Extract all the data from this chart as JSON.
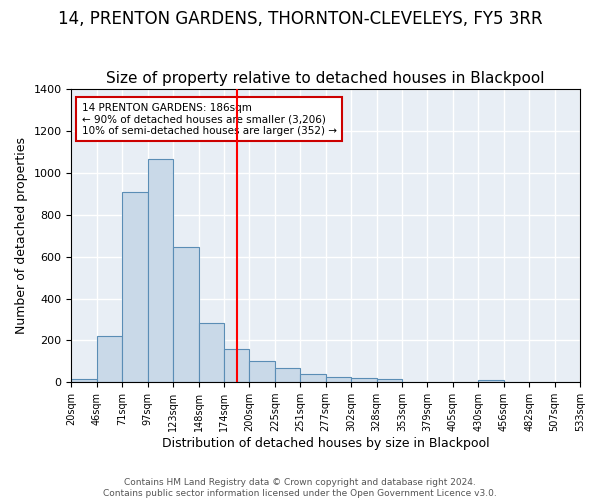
{
  "title": "14, PRENTON GARDENS, THORNTON-CLEVELEYS, FY5 3RR",
  "subtitle": "Size of property relative to detached houses in Blackpool",
  "xlabel": "Distribution of detached houses by size in Blackpool",
  "ylabel": "Number of detached properties",
  "footer_line1": "Contains HM Land Registry data © Crown copyright and database right 2024.",
  "footer_line2": "Contains public sector information licensed under the Open Government Licence v3.0.",
  "annotation_line1": "14 PRENTON GARDENS: 186sqm",
  "annotation_line2": "← 90% of detached houses are smaller (3,206)",
  "annotation_line3": "10% of semi-detached houses are larger (352) →",
  "bar_values": [
    17,
    222,
    908,
    1068,
    648,
    285,
    160,
    103,
    68,
    38,
    25,
    20,
    16,
    0,
    0,
    0,
    13,
    0,
    0,
    0
  ],
  "bin_labels": [
    "20sqm",
    "46sqm",
    "71sqm",
    "97sqm",
    "123sqm",
    "148sqm",
    "174sqm",
    "200sqm",
    "225sqm",
    "251sqm",
    "277sqm",
    "302sqm",
    "328sqm",
    "353sqm",
    "379sqm",
    "405sqm",
    "430sqm",
    "456sqm",
    "482sqm",
    "507sqm",
    "533sqm"
  ],
  "bar_color": "#c9d9e8",
  "bar_edge_color": "#5a8db5",
  "red_line_x": 6.5,
  "ylim": [
    0,
    1400
  ],
  "yticks": [
    0,
    200,
    400,
    600,
    800,
    1000,
    1200,
    1400
  ],
  "background_color": "#e8eef5",
  "grid_color": "#ffffff",
  "title_fontsize": 12,
  "subtitle_fontsize": 11,
  "annotation_box_color": "#ffffff",
  "annotation_box_edge": "#cc0000"
}
